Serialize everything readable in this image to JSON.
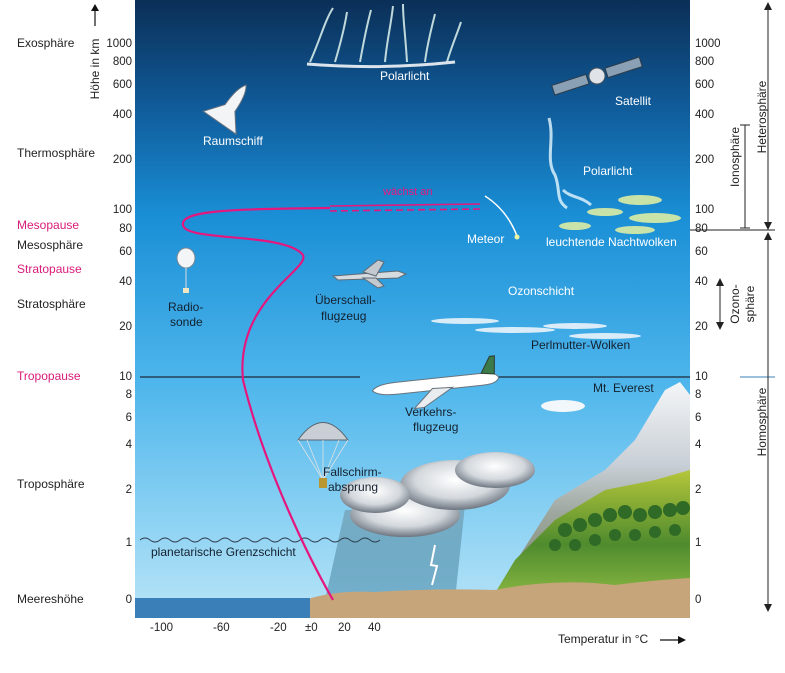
{
  "axis": {
    "y_title": "Höhe in km",
    "x_title": "Temperatur in °C",
    "left_ticks": [
      {
        "label": "1000",
        "km": 1000
      },
      {
        "label": "800",
        "km": 800
      },
      {
        "label": "600",
        "km": 600
      },
      {
        "label": "400",
        "km": 400
      },
      {
        "label": "200",
        "km": 200
      },
      {
        "label": "100",
        "km": 100
      },
      {
        "label": "80",
        "km": 80
      },
      {
        "label": "60",
        "km": 60
      },
      {
        "label": "40",
        "km": 40
      },
      {
        "label": "20",
        "km": 20
      },
      {
        "label": "10",
        "km": 10
      },
      {
        "label": "8",
        "km": 8
      },
      {
        "label": "6",
        "km": 6
      },
      {
        "label": "4",
        "km": 4
      },
      {
        "label": "2",
        "km": 2
      },
      {
        "label": "1",
        "km": 1
      },
      {
        "label": "0",
        "km": 0
      }
    ],
    "right_ticks": [
      {
        "label": "1000",
        "km": 1000
      },
      {
        "label": "800",
        "km": 800
      },
      {
        "label": "600",
        "km": 600
      },
      {
        "label": "400",
        "km": 400
      },
      {
        "label": "200",
        "km": 200
      },
      {
        "label": "100",
        "km": 100
      },
      {
        "label": "80",
        "km": 80
      },
      {
        "label": "60",
        "km": 60
      },
      {
        "label": "40",
        "km": 40
      },
      {
        "label": "20",
        "km": 20
      },
      {
        "label": "10",
        "km": 10
      },
      {
        "label": "8",
        "km": 8
      },
      {
        "label": "6",
        "km": 6
      },
      {
        "label": "4",
        "km": 4
      },
      {
        "label": "2",
        "km": 2
      },
      {
        "label": "1",
        "km": 1
      },
      {
        "label": "0",
        "km": 0
      }
    ],
    "x_ticks": [
      "-100",
      "-60",
      "-20",
      "±0",
      "20",
      "40"
    ]
  },
  "layers": {
    "exosphere": "Exosphäre",
    "thermosphere": "Thermosphäre",
    "mesopause": "Mesopause",
    "mesosphere": "Mesosphäre",
    "stratopause": "Stratopause",
    "stratosphere": "Stratosphäre",
    "tropopause": "Tropopause",
    "troposphere": "Troposphäre",
    "sea_level": "Meereshöhe"
  },
  "regions": {
    "heterosphere": "Heterosphäre",
    "ionosphere": "Ionosphäre",
    "ozonosphere_line1": "Ozono-",
    "ozonosphere_line2": "sphäre",
    "homosphere": "Homosphäre"
  },
  "features": {
    "aurora_top": "Polarlicht",
    "space_shuttle": "Raumschiff",
    "satellite": "Satellit",
    "aurora_mid": "Polarlicht",
    "increasing": "wächst an",
    "meteor": "Meteor",
    "noctilucent": "leuchtende Nachtwolken",
    "radiosonde_line1": "Radio-",
    "radiosonde_line2": "sonde",
    "supersonic_line1": "Überschall-",
    "supersonic_line2": "flugzeug",
    "ozone_layer": "Ozonschicht",
    "nacreous": "Perlmutter-Wolken",
    "everest": "Mt. Everest",
    "airliner_line1": "Verkehrs-",
    "airliner_line2": "flugzeug",
    "parachute_line1": "Fallschirm-",
    "parachute_line2": "absprung",
    "boundary_layer": "planetarische Grenzschicht"
  },
  "colors": {
    "sky_top": "#0b2f57",
    "sky_mid": "#1a8fd6",
    "sky_low": "#8fd3f3",
    "temperature_curve": "#e5177e",
    "pink_label": "#d81b7a"
  }
}
